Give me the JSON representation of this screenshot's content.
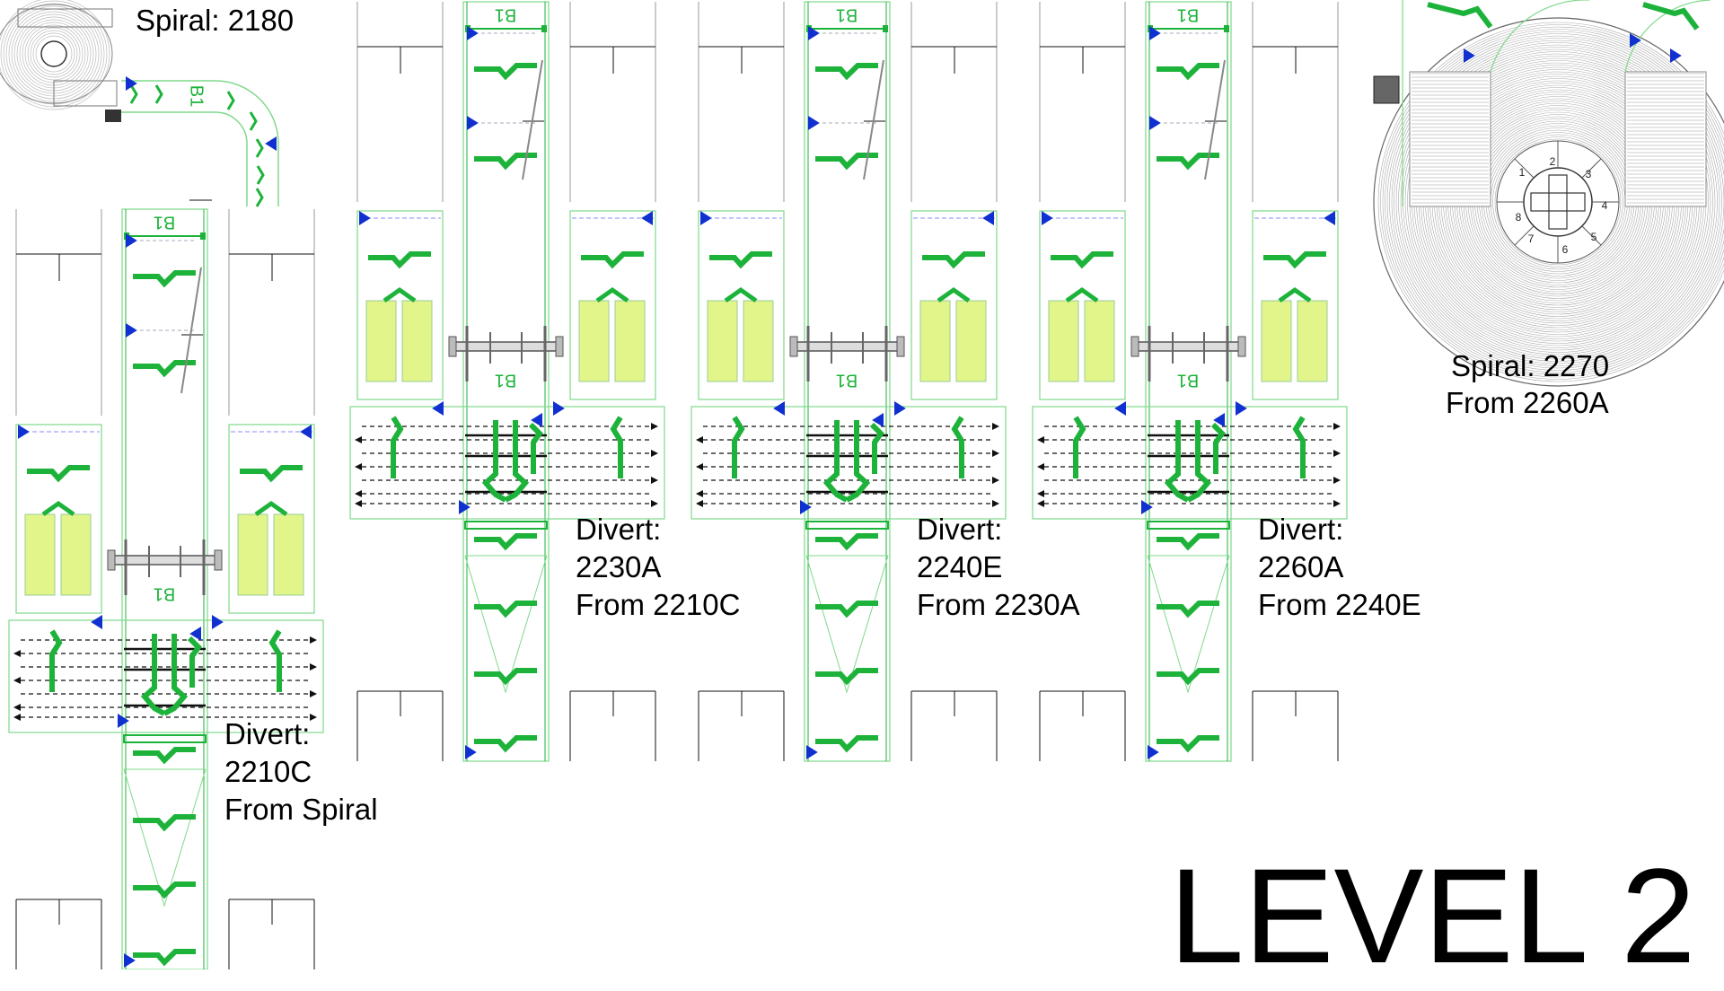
{
  "labels": {
    "spiral_2180": "Spiral: 2180",
    "spiral_2270_line1": "Spiral: 2270",
    "spiral_2270_line2": "From 2260A",
    "divert_2210c": [
      "Divert:",
      "2210C",
      "From Spiral"
    ],
    "divert_2230a": [
      "Divert:",
      "2230A",
      "From 2210C"
    ],
    "divert_2240e": [
      "Divert:",
      "2240E",
      "From 2230A"
    ],
    "divert_2260a": [
      "Divert:",
      "2260A",
      "From 2240E"
    ],
    "level": "LEVEL 2"
  },
  "zone_tag": "B1",
  "spiral_sector_numbers": [
    "1",
    "2",
    "3",
    "4",
    "5",
    "6",
    "7",
    "8"
  ],
  "colors": {
    "conveyor_green": "#1db33a",
    "thin_green": "#7fd98a",
    "arrow_blue": "#1030d0",
    "pad_yellow": "#e2f58a",
    "line_black": "#111111",
    "gray": "#888888"
  },
  "divert_modules": [
    {
      "id": "2210C",
      "label_key": "divert_2210c"
    },
    {
      "id": "2230A",
      "label_key": "divert_2230a"
    },
    {
      "id": "2240E",
      "label_key": "divert_2240e"
    },
    {
      "id": "2260A",
      "label_key": "divert_2260a"
    }
  ]
}
